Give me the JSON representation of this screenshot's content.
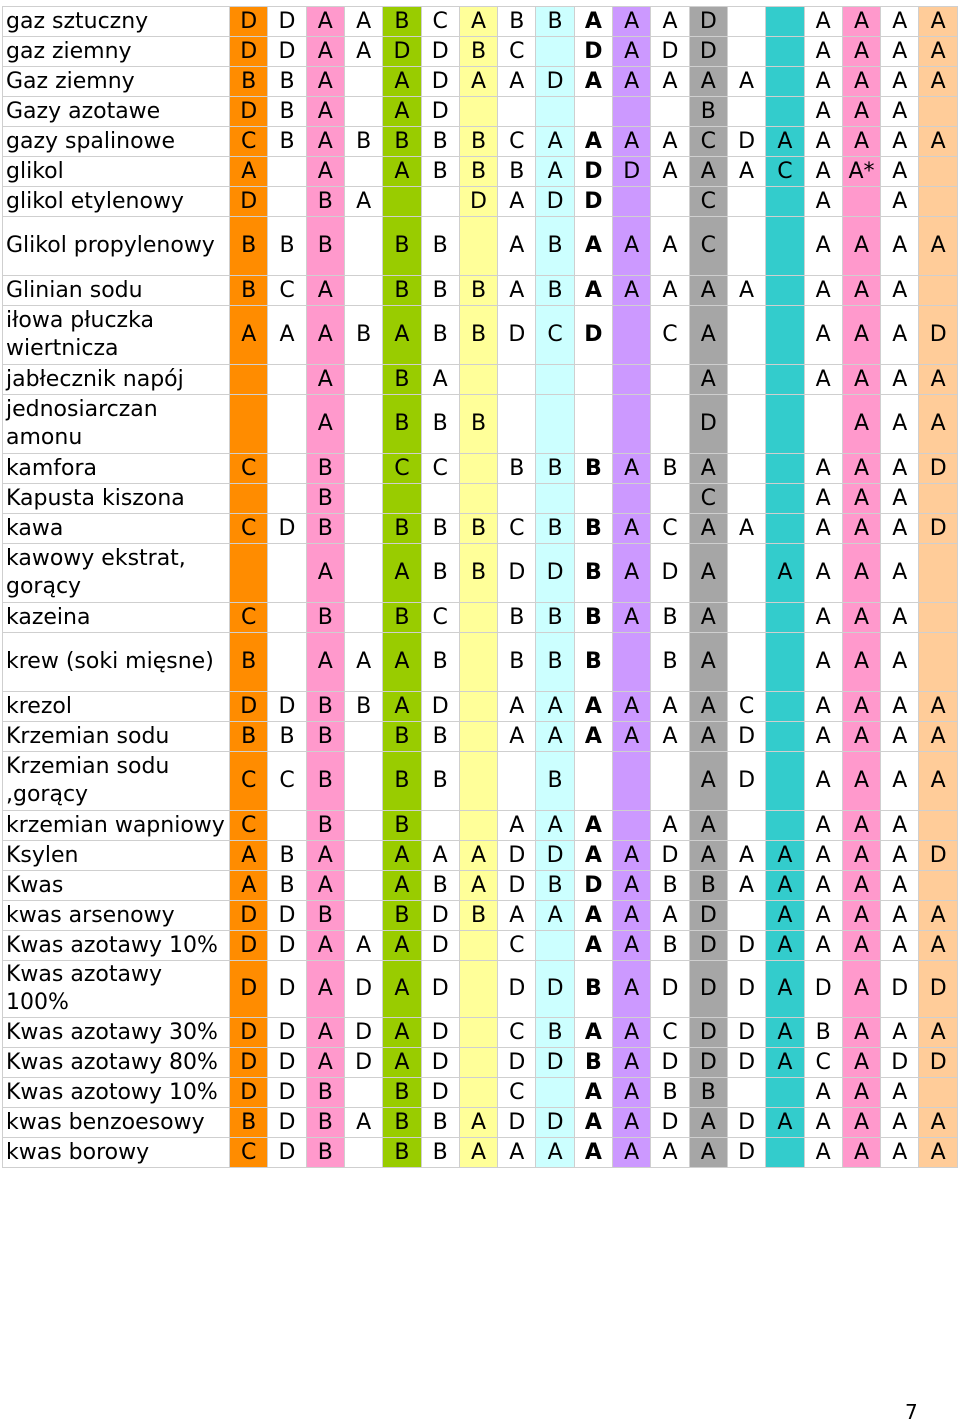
{
  "column_colors": [
    "#ff8c00",
    "#ffffff",
    "#ff99cc",
    "#ffffff",
    "#99cc00",
    "#ffffff",
    "#ffff99",
    "#ffffff",
    "#ccffff",
    "#ffffff",
    "#cc99ff",
    "#ffffff",
    "#a6a6a6",
    "#ffffff",
    "#33cccc",
    "#ffffff",
    "#ff99cc",
    "#ffffff",
    "#ffcc99"
  ],
  "rows": [
    {
      "name": "gaz sztuczny",
      "cells": [
        "D",
        "D",
        "A",
        "A",
        "B",
        "C",
        "A",
        "B",
        "B",
        "A",
        "A",
        "A",
        "D",
        "",
        "",
        "A",
        "A",
        "A",
        "A"
      ],
      "bold": [
        9
      ]
    },
    {
      "name": "gaz ziemny",
      "cells": [
        "D",
        "D",
        "A",
        "A",
        "D",
        "D",
        "B",
        "C",
        "",
        "D",
        "A",
        "D",
        "D",
        "",
        "",
        "A",
        "A",
        "A",
        "A"
      ],
      "bold": [
        9
      ]
    },
    {
      "name": "Gaz ziemny",
      "cells": [
        "B",
        "B",
        "A",
        "",
        "A",
        "D",
        "A",
        "A",
        "D",
        "A",
        "A",
        "A",
        "A",
        "A",
        "",
        "A",
        "A",
        "A",
        "A"
      ],
      "bold": [
        9
      ]
    },
    {
      "name": "Gazy azotawe",
      "cells": [
        "D",
        "B",
        "A",
        "",
        "A",
        "D",
        "",
        "",
        "",
        "",
        "",
        "",
        "B",
        "",
        "",
        "A",
        "A",
        "A",
        ""
      ],
      "bold": []
    },
    {
      "name": "gazy spalinowe",
      "cells": [
        "C",
        "B",
        "A",
        "B",
        "B",
        "B",
        "B",
        "C",
        "A",
        "A",
        "A",
        "A",
        "C",
        "D",
        "A",
        "A",
        "A",
        "A",
        "A"
      ],
      "bold": [
        9
      ]
    },
    {
      "name": "glikol",
      "cells": [
        "A",
        "",
        "A",
        "",
        "A",
        "B",
        "B",
        "B",
        "A",
        "D",
        "D",
        "A",
        "A",
        "A",
        "C",
        "A",
        "A*",
        "A",
        ""
      ],
      "bold": [
        9
      ]
    },
    {
      "name": "glikol etylenowy",
      "cells": [
        "D",
        "",
        "B",
        "A",
        "",
        "",
        "D",
        "A",
        "D",
        "D",
        "",
        "",
        "C",
        "",
        "",
        "A",
        "",
        "A",
        ""
      ],
      "bold": [
        9
      ]
    },
    {
      "name": "Glikol propylenowy",
      "cells": [
        "B",
        "B",
        "B",
        "",
        "B",
        "B",
        "",
        "A",
        "B",
        "A",
        "A",
        "A",
        "C",
        "",
        "",
        "A",
        "A",
        "A",
        "A"
      ],
      "bold": [
        9
      ]
    },
    {
      "name": "Glinian sodu",
      "cells": [
        "B",
        "C",
        "A",
        "",
        "B",
        "B",
        "B",
        "A",
        "B",
        "A",
        "A",
        "A",
        "A",
        "A",
        "",
        "A",
        "A",
        "A",
        ""
      ],
      "bold": [
        9
      ]
    },
    {
      "name": "iłowa płuczka wiertnicza",
      "cells": [
        "A",
        "A",
        "A",
        "B",
        "A",
        "B",
        "B",
        "D",
        "C",
        "D",
        "",
        "C",
        "A",
        "",
        "",
        "A",
        "A",
        "A",
        "D"
      ],
      "bold": [
        9
      ]
    },
    {
      "name": "jabłecznik napój",
      "cells": [
        "",
        "",
        "A",
        "",
        "B",
        "A",
        "",
        "",
        "",
        "",
        "",
        "",
        "A",
        "",
        "",
        "A",
        "A",
        "A",
        "A"
      ],
      "bold": []
    },
    {
      "name": "jednosiarczan amonu",
      "cells": [
        "",
        "",
        "A",
        "",
        "B",
        "B",
        "B",
        "",
        "",
        "",
        "",
        "",
        "D",
        "",
        "",
        "",
        "A",
        "A",
        "A"
      ],
      "bold": []
    },
    {
      "name": "kamfora",
      "cells": [
        "C",
        "",
        "B",
        "",
        "C",
        "C",
        "",
        "B",
        "B",
        "B",
        "A",
        "B",
        "A",
        "",
        "",
        "A",
        "A",
        "A",
        "D"
      ],
      "bold": [
        9
      ]
    },
    {
      "name": "Kapusta kiszona",
      "cells": [
        "",
        "",
        "B",
        "",
        "",
        "",
        "",
        "",
        "",
        "",
        "",
        "",
        "C",
        "",
        "",
        "A",
        "A",
        "A",
        ""
      ],
      "bold": []
    },
    {
      "name": "kawa",
      "cells": [
        "C",
        "D",
        "B",
        "",
        "B",
        "B",
        "B",
        "C",
        "B",
        "B",
        "A",
        "C",
        "A",
        "A",
        "",
        "A",
        "A",
        "A",
        "D"
      ],
      "bold": [
        9
      ]
    },
    {
      "name": "kawowy ekstrat, gorący",
      "cells": [
        "",
        "",
        "A",
        "",
        "A",
        "B",
        "B",
        "D",
        "D",
        "B",
        "A",
        "D",
        "A",
        "",
        "A",
        "A",
        "A",
        "A",
        ""
      ],
      "bold": [
        9
      ]
    },
    {
      "name": "kazeina",
      "cells": [
        "C",
        "",
        "B",
        "",
        "B",
        "C",
        "",
        "B",
        "B",
        "B",
        "A",
        "B",
        "A",
        "",
        "",
        "A",
        "A",
        "A",
        ""
      ],
      "bold": [
        9
      ]
    },
    {
      "name": "krew (soki mięsne)",
      "cells": [
        "B",
        "",
        "A",
        "A",
        "A",
        "B",
        "",
        "B",
        "B",
        "B",
        "",
        "B",
        "A",
        "",
        "",
        "A",
        "A",
        "A",
        ""
      ],
      "bold": [
        9
      ]
    },
    {
      "name": "krezol",
      "cells": [
        "D",
        "D",
        "B",
        "B",
        "A",
        "D",
        "",
        "A",
        "A",
        "A",
        "A",
        "A",
        "A",
        "C",
        "",
        "A",
        "A",
        "A",
        "A"
      ],
      "bold": [
        9
      ]
    },
    {
      "name": "Krzemian sodu",
      "cells": [
        "B",
        "B",
        "B",
        "",
        "B",
        "B",
        "",
        "A",
        "A",
        "A",
        "A",
        "A",
        "A",
        "D",
        "",
        "A",
        "A",
        "A",
        "A"
      ],
      "bold": [
        9
      ]
    },
    {
      "name": "Krzemian sodu ,gorący",
      "cells": [
        "C",
        "C",
        "B",
        "",
        "B",
        "B",
        "",
        "",
        "B",
        "",
        "",
        "",
        "A",
        "D",
        "",
        "A",
        "A",
        "A",
        "A"
      ],
      "bold": []
    },
    {
      "name": "krzemian wapniowy",
      "cells": [
        "C",
        "",
        "B",
        "",
        "B",
        "",
        "",
        "A",
        "A",
        "A",
        "",
        "A",
        "A",
        "",
        "",
        "A",
        "A",
        "A",
        ""
      ],
      "bold": [
        9
      ]
    },
    {
      "name": "Ksylen",
      "cells": [
        "A",
        "B",
        "A",
        "",
        "A",
        "A",
        "A",
        "D",
        "D",
        "A",
        "A",
        "D",
        "A",
        "A",
        "A",
        "A",
        "A",
        "A",
        "D"
      ],
      "bold": [
        9
      ]
    },
    {
      "name": "Kwas",
      "cells": [
        "A",
        "B",
        "A",
        "",
        "A",
        "B",
        "A",
        "D",
        "B",
        "D",
        "A",
        "B",
        "B",
        "A",
        "A",
        "A",
        "A",
        "A",
        ""
      ],
      "bold": [
        9
      ]
    },
    {
      "name": "kwas arsenowy",
      "cells": [
        "D",
        "D",
        "B",
        "",
        "B",
        "D",
        "B",
        "A",
        "A",
        "A",
        "A",
        "A",
        "D",
        "",
        "A",
        "A",
        "A",
        "A",
        "A"
      ],
      "bold": [
        9
      ]
    },
    {
      "name": "Kwas azotawy 10%",
      "cells": [
        "D",
        "D",
        "A",
        "A",
        "A",
        "D",
        "",
        "C",
        "",
        "A",
        "A",
        "B",
        "D",
        "D",
        "A",
        "A",
        "A",
        "A",
        "A"
      ],
      "bold": [
        9
      ]
    },
    {
      "name": "Kwas azotawy 100%",
      "cells": [
        "D",
        "D",
        "A",
        "D",
        "A",
        "D",
        "",
        "D",
        "D",
        "B",
        "A",
        "D",
        "D",
        "D",
        "A",
        "D",
        "A",
        "D",
        "D"
      ],
      "bold": [
        9
      ]
    },
    {
      "name": "Kwas azotawy 30%",
      "cells": [
        "D",
        "D",
        "A",
        "D",
        "A",
        "D",
        "",
        "C",
        "B",
        "A",
        "A",
        "C",
        "D",
        "D",
        "A",
        "B",
        "A",
        "A",
        "A"
      ],
      "bold": [
        9
      ]
    },
    {
      "name": "Kwas azotawy 80%",
      "cells": [
        "D",
        "D",
        "A",
        "D",
        "A",
        "D",
        "",
        "D",
        "D",
        "B",
        "A",
        "D",
        "D",
        "D",
        "A",
        "C",
        "A",
        "D",
        "D"
      ],
      "bold": [
        9
      ]
    },
    {
      "name": "Kwas azotowy 10%",
      "cells": [
        "D",
        "D",
        "B",
        "",
        "B",
        "D",
        "",
        "C",
        "",
        "A",
        "A",
        "B",
        "B",
        "",
        "",
        "A",
        "A",
        "A",
        ""
      ],
      "bold": [
        9
      ]
    },
    {
      "name": "kwas benzoesowy",
      "cells": [
        "B",
        "D",
        "B",
        "A",
        "B",
        "B",
        "A",
        "D",
        "D",
        "A",
        "A",
        "D",
        "A",
        "D",
        "A",
        "A",
        "A",
        "A",
        "A"
      ],
      "bold": [
        9
      ]
    },
    {
      "name": "kwas borowy",
      "cells": [
        "C",
        "D",
        "B",
        "",
        "B",
        "B",
        "A",
        "A",
        "A",
        "A",
        "A",
        "A",
        "A",
        "D",
        "",
        "A",
        "A",
        "A",
        "A"
      ],
      "bold": [
        9
      ]
    }
  ],
  "page_number": "7"
}
